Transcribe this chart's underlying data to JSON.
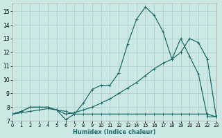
{
  "xlabel": "Humidex (Indice chaleur)",
  "bg_color": "#cce8e4",
  "grid_color": "#aacccc",
  "line_color": "#1a6b6b",
  "xlim": [
    0,
    23
  ],
  "ylim": [
    7,
    15.6
  ],
  "xticks": [
    0,
    1,
    2,
    3,
    4,
    5,
    6,
    7,
    8,
    9,
    10,
    11,
    12,
    13,
    14,
    15,
    16,
    17,
    18,
    19,
    20,
    21,
    22,
    23
  ],
  "yticks": [
    7,
    8,
    9,
    10,
    11,
    12,
    13,
    14,
    15
  ],
  "s1_x": [
    0,
    1,
    2,
    3,
    4,
    5,
    6,
    7,
    8,
    9,
    10,
    11,
    12,
    13,
    14,
    15,
    16,
    17,
    18,
    19,
    20,
    21,
    22,
    23
  ],
  "s1_y": [
    7.5,
    7.7,
    8.0,
    8.0,
    8.0,
    7.8,
    7.1,
    7.5,
    8.3,
    9.3,
    9.6,
    9.6,
    10.5,
    12.6,
    14.4,
    15.3,
    14.7,
    13.5,
    11.5,
    13.0,
    11.7,
    10.4,
    7.3,
    7.3
  ],
  "s2_x": [
    0,
    1,
    2,
    3,
    4,
    5,
    6,
    7,
    8,
    9,
    10,
    11,
    12,
    13,
    14,
    15,
    16,
    17,
    18,
    19,
    20,
    21,
    22,
    23
  ],
  "s2_y": [
    7.5,
    7.6,
    7.7,
    7.8,
    7.9,
    7.8,
    7.7,
    7.5,
    7.5,
    7.5,
    7.5,
    7.5,
    7.5,
    7.5,
    7.5,
    7.5,
    7.5,
    7.5,
    7.5,
    7.5,
    7.5,
    7.5,
    7.5,
    7.3
  ],
  "s3_x": [
    0,
    1,
    2,
    3,
    4,
    5,
    6,
    7,
    8,
    9,
    10,
    11,
    12,
    13,
    14,
    15,
    16,
    17,
    18,
    19,
    20,
    21,
    22,
    23
  ],
  "s3_y": [
    7.5,
    7.7,
    8.0,
    8.0,
    8.0,
    7.8,
    7.5,
    7.6,
    7.8,
    8.0,
    8.3,
    8.6,
    9.0,
    9.4,
    9.8,
    10.3,
    10.8,
    11.2,
    11.5,
    12.0,
    13.0,
    12.7,
    11.5,
    7.3
  ]
}
